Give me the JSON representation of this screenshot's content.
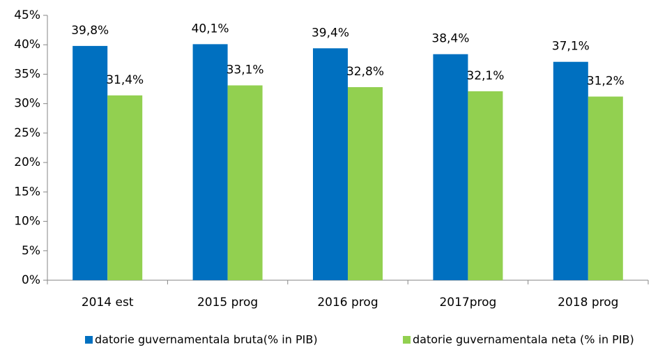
{
  "chart_data": {
    "type": "bar",
    "categories": [
      "2014 est",
      "2015 prog",
      "2016 prog",
      "2017prog",
      "2018 prog"
    ],
    "series": [
      {
        "name": "datorie guvernamentala bruta(% in PIB)",
        "color": "#0070c0",
        "values": [
          39.8,
          40.1,
          39.4,
          38.4,
          37.1
        ],
        "value_labels": [
          "39,8%",
          "40,1%",
          "39,4%",
          "38,4%",
          "37,1%"
        ]
      },
      {
        "name": "datorie guvernamentala neta (% in PIB)",
        "color": "#92d050",
        "values": [
          31.4,
          33.1,
          32.8,
          32.1,
          31.2
        ],
        "value_labels": [
          "31,4%",
          "33,1%",
          "32,8%",
          "32,1%",
          "31,2%"
        ]
      }
    ],
    "ylim": [
      0,
      45
    ],
    "yticks": [
      {
        "value": 0,
        "label": "0%"
      },
      {
        "value": 5,
        "label": "5%"
      },
      {
        "value": 10,
        "label": "10%"
      },
      {
        "value": 15,
        "label": "15%"
      },
      {
        "value": 20,
        "label": "20%"
      },
      {
        "value": 25,
        "label": "25%"
      },
      {
        "value": 30,
        "label": "30%"
      },
      {
        "value": 35,
        "label": "35%"
      },
      {
        "value": 40,
        "label": "40%"
      },
      {
        "value": 45,
        "label": "45%"
      }
    ],
    "grid": false,
    "legend": "bottom"
  }
}
